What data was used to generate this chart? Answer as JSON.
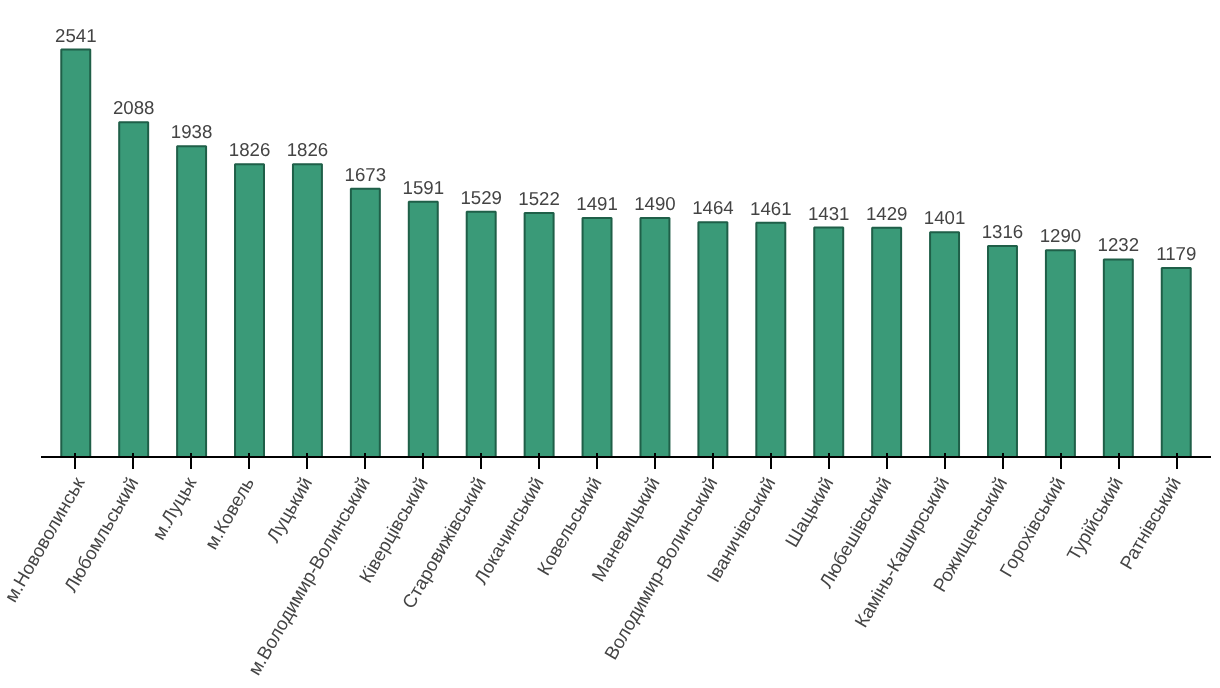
{
  "chart_data": {
    "type": "bar",
    "categories": [
      "м.Нововолинськ",
      "Любомльський",
      "м.Луцьк",
      "м.Ковель",
      "Луцький",
      "м.Володимир-Волинський",
      "Ківерцівський",
      "Старовижівський",
      "Локачинський",
      "Ковельський",
      "Маневицький",
      "Володимир-Волинський",
      "Іваничівський",
      "Шацький",
      "Любешівський",
      "Камінь-Каширський",
      "Рожищенський",
      "Горохівський",
      "Турійський",
      "Ратнівський"
    ],
    "values": [
      2541,
      2088,
      1938,
      1826,
      1826,
      1673,
      1591,
      1529,
      1522,
      1491,
      1490,
      1464,
      1461,
      1431,
      1429,
      1401,
      1316,
      1290,
      1232,
      1179
    ],
    "color": "#3a9a78",
    "data_labels": true,
    "tick_labels": "x",
    "grid": false
  }
}
